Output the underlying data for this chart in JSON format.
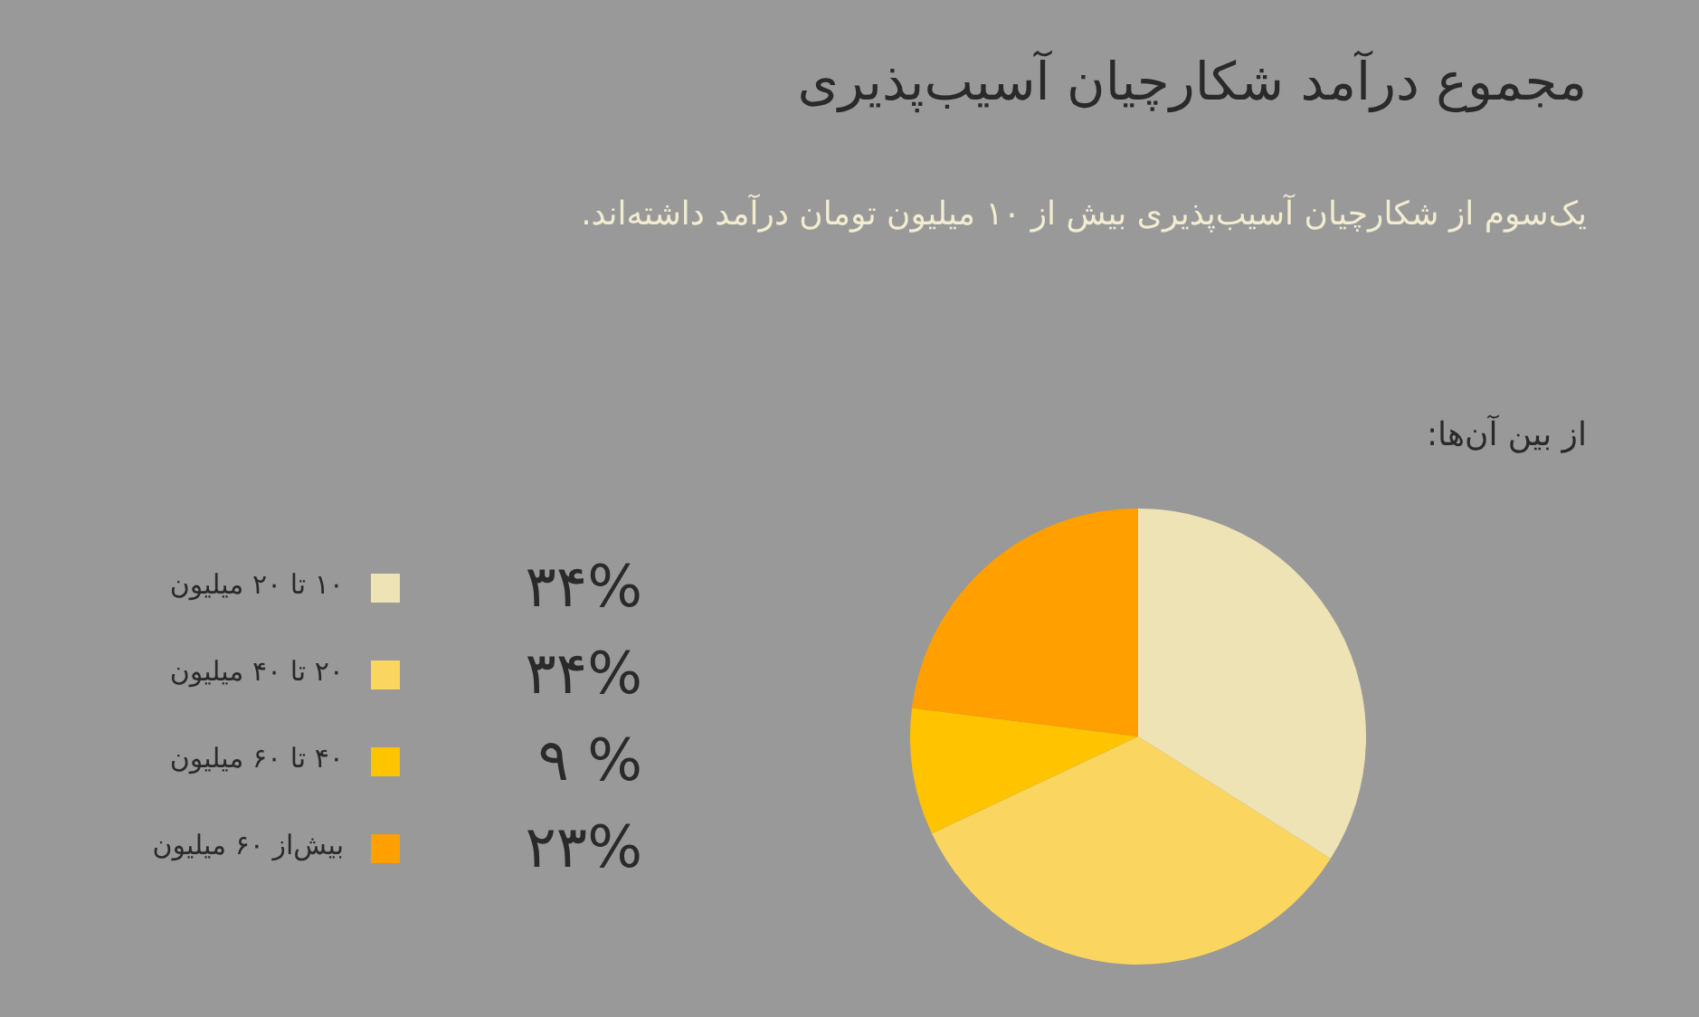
{
  "chart_data": {
    "type": "pie",
    "title": "مجموع درآمد شکارچیان آسیب‌پذیری",
    "subtitle": "یک‌سوم از شکارچیان آسیب‌پذیری بیش از ۱۰ میلیون تومان درآمد داشته‌اند.",
    "annotations": [
      "از بین آن‌ها:"
    ],
    "categories": [
      "۱۰ تا ۲۰ میلیون",
      "۲۰ تا ۴۰ میلیون",
      "۴۰ تا ۶۰ میلیون",
      "بیش‌از ۶۰ میلیون"
    ],
    "values": [
      34,
      34,
      9,
      23
    ],
    "value_labels": [
      "۳۴%",
      "۳۴%",
      "۹ %",
      "۲۳%"
    ],
    "colors": [
      "#ede3b5",
      "#fad660",
      "#ffc300",
      "#ff9f00"
    ],
    "legend": "left"
  }
}
